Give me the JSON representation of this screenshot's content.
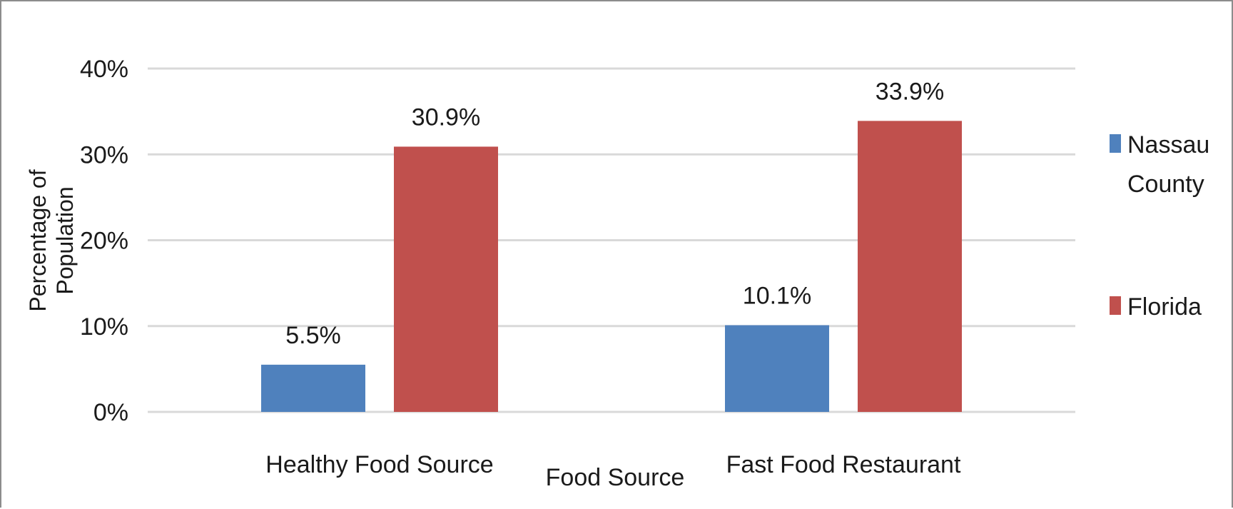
{
  "chart_data": {
    "type": "bar",
    "categories": [
      "Healthy Food Source",
      "Fast Food Restaurant"
    ],
    "series": [
      {
        "name": "Nassau County",
        "values": [
          5.5,
          10.1
        ],
        "color": "#4f81bd"
      },
      {
        "name": "Florida",
        "values": [
          30.9,
          33.9
        ],
        "color": "#c0504d"
      }
    ],
    "data_labels": [
      [
        "5.5%",
        "10.1%"
      ],
      [
        "30.9%",
        "33.9%"
      ]
    ],
    "title": "",
    "xlabel": "Food Source",
    "ylabel": "Percentage of Population",
    "ylabel_lines": [
      "Percentage of",
      "Population"
    ],
    "ylim": [
      0,
      40
    ],
    "yticks": [
      0,
      10,
      20,
      30,
      40
    ],
    "ytick_labels": [
      "0%",
      "10%",
      "20%",
      "30%",
      "40%"
    ],
    "legend_lines": [
      [
        "Nassau",
        "County"
      ],
      [
        "Florida"
      ]
    ],
    "grid": true,
    "legend_position": "right",
    "gridline_color": "#d9d9d9"
  }
}
